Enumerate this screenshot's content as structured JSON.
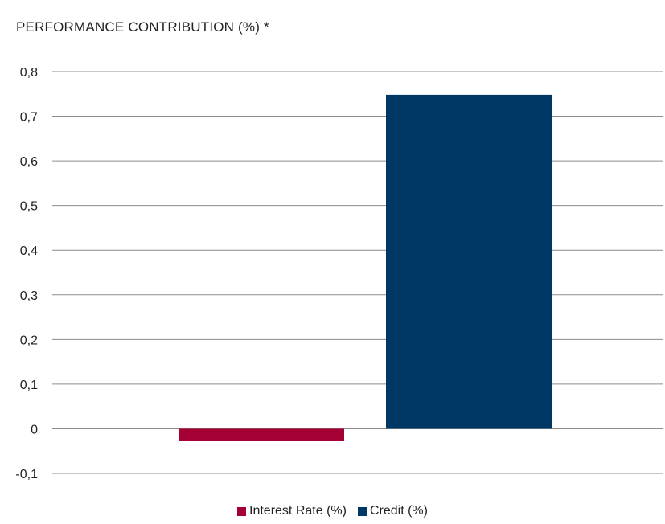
{
  "chart_data": {
    "type": "bar",
    "title": "PERFORMANCE CONTRIBUTION (%)  *",
    "xlabel": "",
    "ylabel": "",
    "ylim": [
      -0.1,
      0.8
    ],
    "yticks": [
      "0,8",
      "0,7",
      "0,6",
      "0,5",
      "0,4",
      "0,3",
      "0,2",
      "0,1",
      "0",
      "-0,1"
    ],
    "ytick_values": [
      0.8,
      0.7,
      0.6,
      0.5,
      0.4,
      0.3,
      0.2,
      0.1,
      0,
      -0.1
    ],
    "grid": true,
    "legend_position": "bottom",
    "series": [
      {
        "name": "Interest Rate (%)",
        "value": -0.028,
        "color": "#a50034"
      },
      {
        "name": "Credit (%)",
        "value": 0.748,
        "color": "#003865"
      }
    ]
  }
}
